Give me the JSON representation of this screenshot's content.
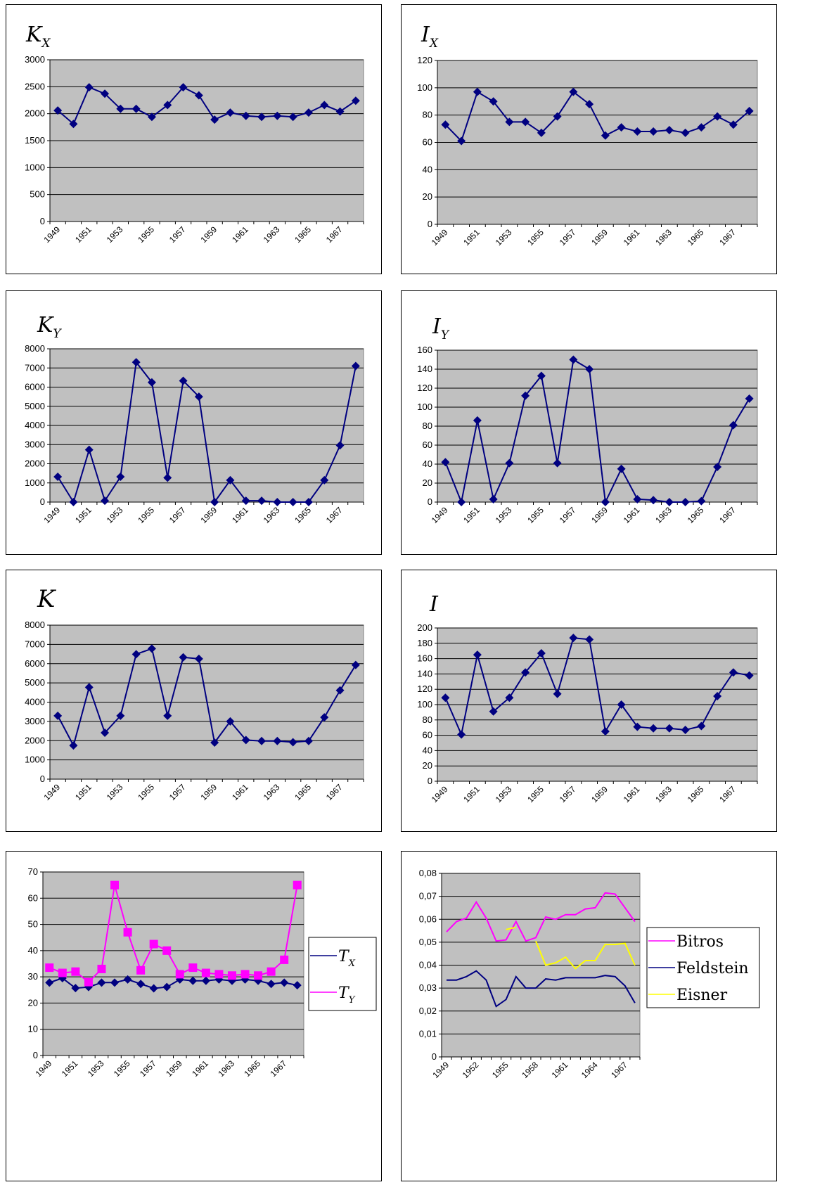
{
  "chart_data": [
    {
      "type": "line",
      "title": "K",
      "title_sub": "X",
      "x": [
        "1949",
        "1950",
        "1951",
        "1952",
        "1953",
        "1954",
        "1955",
        "1956",
        "1957",
        "1958",
        "1959",
        "1960",
        "1961",
        "1962",
        "1963",
        "1964",
        "1965",
        "1966",
        "1967",
        "1968"
      ],
      "x_tick_labels": [
        "1949",
        "1951",
        "1953",
        "1955",
        "1957",
        "1959",
        "1961",
        "1963",
        "1965",
        "1967"
      ],
      "ylim": [
        0,
        3000
      ],
      "y_ticks": [
        "0",
        "500",
        "1000",
        "1500",
        "2000",
        "2500",
        "3000"
      ],
      "series": [
        {
          "values": [
            2060,
            1810,
            2490,
            2370,
            2090,
            2090,
            1940,
            2160,
            2490,
            2340,
            1890,
            2020,
            1960,
            1940,
            1960,
            1940,
            2020,
            2160,
            2040,
            2240
          ],
          "color": "#000080",
          "marker": "diamond"
        }
      ],
      "grid": true
    },
    {
      "type": "line",
      "title": "I",
      "title_sub": "X",
      "x": [
        "1949",
        "1950",
        "1951",
        "1952",
        "1953",
        "1954",
        "1955",
        "1956",
        "1957",
        "1958",
        "1959",
        "1960",
        "1961",
        "1962",
        "1963",
        "1964",
        "1965",
        "1966",
        "1967",
        "1968"
      ],
      "x_tick_labels": [
        "1949",
        "1951",
        "1953",
        "1955",
        "1957",
        "1959",
        "1961",
        "1963",
        "1965",
        "1967"
      ],
      "ylim": [
        0,
        120
      ],
      "y_ticks": [
        "0",
        "20",
        "40",
        "60",
        "80",
        "100",
        "120"
      ],
      "series": [
        {
          "values": [
            73,
            61,
            97,
            90,
            75,
            75,
            67,
            79,
            97,
            88,
            65,
            71,
            68,
            68,
            69,
            67,
            71,
            79,
            73,
            83
          ],
          "color": "#000080",
          "marker": "diamond"
        }
      ],
      "grid": true
    },
    {
      "type": "line",
      "title": "K",
      "title_sub": "Y",
      "x": [
        "1949",
        "1950",
        "1951",
        "1952",
        "1953",
        "1954",
        "1955",
        "1956",
        "1957",
        "1958",
        "1959",
        "1960",
        "1961",
        "1962",
        "1963",
        "1964",
        "1965",
        "1966",
        "1967",
        "1968"
      ],
      "x_tick_labels": [
        "1949",
        "1951",
        "1953",
        "1955",
        "1957",
        "1959",
        "1961",
        "1963",
        "1965",
        "1967"
      ],
      "ylim": [
        0,
        8000
      ],
      "y_ticks": [
        "0",
        "1000",
        "2000",
        "3000",
        "4000",
        "5000",
        "6000",
        "7000",
        "8000"
      ],
      "series": [
        {
          "values": [
            1320,
            0,
            2730,
            70,
            1320,
            7300,
            6250,
            1270,
            6330,
            5500,
            0,
            1140,
            70,
            70,
            0,
            0,
            0,
            1140,
            2960,
            7100
          ],
          "color": "#000080",
          "marker": "diamond"
        }
      ],
      "grid": true
    },
    {
      "type": "line",
      "title": "I",
      "title_sub": "Y",
      "x": [
        "1949",
        "1950",
        "1951",
        "1952",
        "1953",
        "1954",
        "1955",
        "1956",
        "1957",
        "1958",
        "1959",
        "1960",
        "1961",
        "1962",
        "1963",
        "1964",
        "1965",
        "1966",
        "1967",
        "1968"
      ],
      "x_tick_labels": [
        "1949",
        "1951",
        "1953",
        "1955",
        "1957",
        "1959",
        "1961",
        "1963",
        "1965",
        "1967"
      ],
      "ylim": [
        0,
        160
      ],
      "y_ticks": [
        "0",
        "20",
        "40",
        "60",
        "80",
        "100",
        "120",
        "140",
        "160"
      ],
      "series": [
        {
          "values": [
            42,
            0,
            86,
            3,
            41,
            112,
            133,
            41,
            150,
            140,
            0,
            35,
            3,
            2,
            0,
            0,
            1,
            37,
            81,
            109
          ],
          "color": "#000080",
          "marker": "diamond"
        }
      ],
      "grid": true
    },
    {
      "type": "line",
      "title": "K",
      "title_sub": "",
      "x": [
        "1949",
        "1950",
        "1951",
        "1952",
        "1953",
        "1954",
        "1955",
        "1956",
        "1957",
        "1958",
        "1959",
        "1960",
        "1961",
        "1962",
        "1963",
        "1964",
        "1965",
        "1966",
        "1967",
        "1968"
      ],
      "x_tick_labels": [
        "1949",
        "1951",
        "1953",
        "1955",
        "1957",
        "1959",
        "1961",
        "1963",
        "1965",
        "1967"
      ],
      "ylim": [
        0,
        8000
      ],
      "y_ticks": [
        "0",
        "1000",
        "2000",
        "3000",
        "4000",
        "5000",
        "6000",
        "7000",
        "8000"
      ],
      "series": [
        {
          "values": [
            3290,
            1750,
            4770,
            2410,
            3290,
            6490,
            6780,
            3290,
            6330,
            6250,
            1900,
            3000,
            2030,
            1980,
            1980,
            1920,
            1980,
            3210,
            4610,
            5930
          ],
          "color": "#000080",
          "marker": "diamond"
        }
      ],
      "grid": true
    },
    {
      "type": "line",
      "title": "I",
      "title_sub": "",
      "x": [
        "1949",
        "1950",
        "1951",
        "1952",
        "1953",
        "1954",
        "1955",
        "1956",
        "1957",
        "1958",
        "1959",
        "1960",
        "1961",
        "1962",
        "1963",
        "1964",
        "1965",
        "1966",
        "1967",
        "1968"
      ],
      "x_tick_labels": [
        "1949",
        "1951",
        "1953",
        "1955",
        "1957",
        "1959",
        "1961",
        "1963",
        "1965",
        "1967"
      ],
      "ylim": [
        0,
        200
      ],
      "y_ticks": [
        "0",
        "20",
        "40",
        "60",
        "80",
        "100",
        "120",
        "140",
        "160",
        "180",
        "200"
      ],
      "series": [
        {
          "values": [
            109,
            61,
            165,
            91,
            109,
            142,
            167,
            114,
            187,
            185,
            65,
            100,
            71,
            69,
            69,
            67,
            72,
            111,
            142,
            138
          ],
          "color": "#000080",
          "marker": "diamond"
        }
      ],
      "grid": true
    },
    {
      "type": "line",
      "title": "",
      "x": [
        "1949",
        "1950",
        "1951",
        "1952",
        "1953",
        "1954",
        "1955",
        "1956",
        "1957",
        "1958",
        "1959",
        "1960",
        "1961",
        "1962",
        "1963",
        "1964",
        "1965",
        "1966",
        "1967",
        "1968"
      ],
      "x_tick_labels": [
        "1949",
        "1951",
        "1953",
        "1955",
        "1957",
        "1959",
        "1961",
        "1963",
        "1965",
        "1967"
      ],
      "ylim": [
        0,
        70
      ],
      "y_ticks": [
        "0",
        "10",
        "20",
        "30",
        "40",
        "50",
        "60",
        "70"
      ],
      "series": [
        {
          "name": "T",
          "name_sub": "X",
          "values": [
            27.8,
            29.5,
            25.7,
            26.1,
            27.8,
            27.8,
            29.0,
            27.3,
            25.6,
            26.1,
            29.0,
            28.5,
            28.5,
            29.0,
            28.5,
            29.0,
            28.5,
            27.3,
            27.8,
            26.8
          ],
          "color": "#000080",
          "marker": "diamond"
        },
        {
          "name": "T",
          "name_sub": "Y",
          "values": [
            33.5,
            31.5,
            32.0,
            28.0,
            33.0,
            65.0,
            47.0,
            32.5,
            42.5,
            40.0,
            31.0,
            33.5,
            31.5,
            31.0,
            30.5,
            31.0,
            30.5,
            32.0,
            36.5,
            65.0
          ],
          "color": "#ff00ff",
          "marker": "square"
        }
      ],
      "legend": "right",
      "grid": true
    },
    {
      "type": "line",
      "title": "",
      "x": [
        "1949",
        "1950",
        "1951",
        "1952",
        "1953",
        "1954",
        "1955",
        "1956",
        "1957",
        "1958",
        "1959",
        "1960",
        "1961",
        "1962",
        "1963",
        "1964",
        "1965",
        "1966",
        "1967",
        "1968"
      ],
      "x_tick_labels": [
        "1949",
        "1952",
        "1955",
        "1958",
        "1961",
        "1964",
        "1967"
      ],
      "ylim": [
        0,
        0.08
      ],
      "y_ticks": [
        "0",
        "0,01",
        "0,02",
        "0,03",
        "0,04",
        "0,05",
        "0,06",
        "0,07",
        "0,08"
      ],
      "series": [
        {
          "name": "Bitros",
          "values": [
            0.0545,
            0.059,
            0.0605,
            0.0675,
            0.0605,
            0.0505,
            0.051,
            0.059,
            0.0505,
            0.052,
            0.061,
            0.06,
            0.062,
            0.062,
            0.0645,
            0.065,
            0.0715,
            0.071,
            0.065,
            0.059
          ],
          "color": "#ff00ff",
          "marker": "none"
        },
        {
          "name": "Feldstein",
          "values": [
            0.0335,
            0.0335,
            0.035,
            0.0375,
            0.0335,
            0.022,
            0.025,
            0.035,
            0.03,
            0.03,
            0.034,
            0.0335,
            0.0345,
            0.0345,
            0.0345,
            0.0345,
            0.0355,
            0.035,
            0.031,
            0.0235
          ],
          "color": "#000080",
          "marker": "none"
        },
        {
          "name": "Eisner",
          "values": [
            null,
            null,
            null,
            null,
            null,
            null,
            0.0555,
            0.0565,
            null,
            0.0505,
            0.04,
            0.041,
            0.0435,
            0.0385,
            0.042,
            0.042,
            0.049,
            0.049,
            0.0495,
            0.04
          ],
          "color": "#ffff00",
          "marker": "none"
        }
      ],
      "legend": "right",
      "grid": true
    }
  ]
}
